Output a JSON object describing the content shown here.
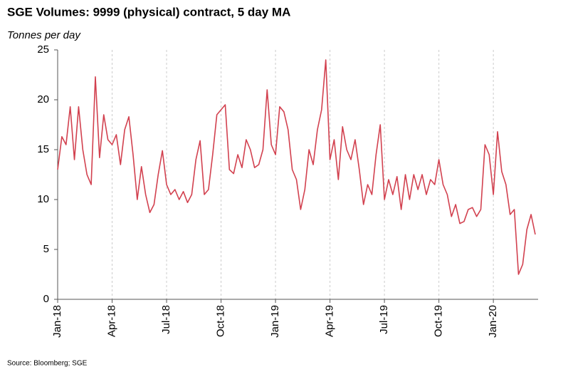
{
  "chart_data": {
    "type": "line",
    "title": "SGE Volumes: 9999 (physical) contract, 5 day MA",
    "y_label": "Tonnes per day",
    "source": "Source: Bloomberg; SGE",
    "categories": [
      "Jan-18",
      null,
      null,
      null,
      null,
      null,
      null,
      null,
      null,
      null,
      null,
      null,
      null,
      "Apr-18",
      null,
      null,
      null,
      null,
      null,
      null,
      null,
      null,
      null,
      null,
      null,
      null,
      "Jul-18",
      null,
      null,
      null,
      null,
      null,
      null,
      null,
      null,
      null,
      null,
      null,
      null,
      "Oct-18",
      null,
      null,
      null,
      null,
      null,
      null,
      null,
      null,
      null,
      null,
      null,
      null,
      "Jan-19",
      null,
      null,
      null,
      null,
      null,
      null,
      null,
      null,
      null,
      null,
      null,
      null,
      "Apr-19",
      null,
      null,
      null,
      null,
      null,
      null,
      null,
      null,
      null,
      null,
      null,
      null,
      "Jul-19",
      null,
      null,
      null,
      null,
      null,
      null,
      null,
      null,
      null,
      null,
      null,
      null,
      "Oct-19",
      null,
      null,
      null,
      null,
      null,
      null,
      null,
      null,
      null,
      null,
      null,
      null,
      "Jan-20",
      null,
      null,
      null,
      null,
      null,
      null,
      null,
      null,
      null,
      null
    ],
    "values": [
      13,
      16.3,
      15.5,
      19.3,
      14,
      19.3,
      15,
      12.5,
      11.5,
      22.3,
      14.2,
      18.5,
      16,
      15.5,
      16.5,
      13.5,
      17,
      18.3,
      14.5,
      10,
      13.3,
      10.5,
      8.7,
      9.5,
      12.5,
      14.9,
      11.5,
      10.5,
      11,
      10,
      10.8,
      9.7,
      10.5,
      14,
      15.9,
      10.5,
      11,
      14.5,
      18.5,
      19,
      19.5,
      13,
      12.6,
      14.5,
      13.2,
      16,
      15,
      13.2,
      13.5,
      15,
      21,
      15.5,
      14.5,
      19.3,
      18.8,
      17,
      13,
      12,
      9,
      11,
      15,
      13.5,
      17,
      19,
      24,
      14,
      16,
      12,
      17.3,
      15,
      14,
      16,
      13,
      9.5,
      11.5,
      10.5,
      14.5,
      17.5,
      10,
      12,
      10.5,
      12.3,
      9,
      12.5,
      10,
      12.5,
      11,
      12.5,
      10.5,
      12,
      11.5,
      14,
      11.5,
      10.5,
      8.3,
      9.5,
      7.6,
      7.8,
      9,
      9.2,
      8.3,
      9,
      15.5,
      14.5,
      10.5,
      16.8,
      12.8,
      11.5,
      8.5,
      9,
      2.5,
      3.5,
      7,
      8.5,
      6.5
    ],
    "color": "#d2414f",
    "ylim": [
      0,
      25
    ],
    "yticks": [
      0,
      5,
      10,
      15,
      20,
      25
    ],
    "grid": "x"
  }
}
